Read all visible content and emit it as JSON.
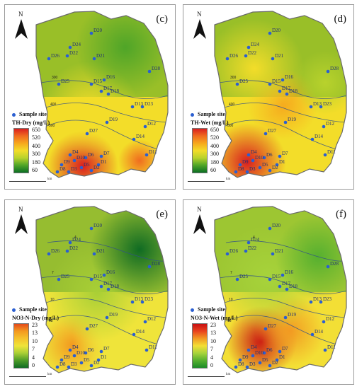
{
  "panels": [
    {
      "letter": "(c)",
      "north": "N",
      "sample_label": "Sample site",
      "legend_title": "TH-Dry (mg/L)",
      "ticks": [
        "650",
        "520",
        "400",
        "300",
        "180",
        "60"
      ],
      "gradient": [
        "#d91f1f",
        "#f06c1f",
        "#f6a81d",
        "#f3dd29",
        "#b8d22c",
        "#4fa528",
        "#0b6f24"
      ],
      "contours": [
        "500",
        "400",
        "300"
      ],
      "sites": [
        "D20",
        "D24",
        "D26",
        "D22",
        "D21",
        "D28",
        "D25",
        "D15",
        "D16",
        "D17",
        "D18",
        "D13",
        "D23",
        "D19",
        "D12",
        "D27",
        "D14",
        "D11",
        "D4",
        "D6",
        "D7",
        "D9",
        "D5",
        "D1",
        "D10",
        "D3",
        "D8",
        "D2"
      ]
    },
    {
      "letter": "(d)",
      "north": "N",
      "sample_label": "Sample site",
      "legend_title": "TH-Wet (mg/L)",
      "ticks": [
        "650",
        "520",
        "400",
        "300",
        "180",
        "60"
      ],
      "gradient": [
        "#d91f1f",
        "#f06c1f",
        "#f6a81d",
        "#f3dd29",
        "#b8d22c",
        "#4fa528",
        "#0b6f24"
      ],
      "contours": [
        "500",
        "400",
        "300"
      ],
      "sites": [
        "D20",
        "D24",
        "D26",
        "D22",
        "D21",
        "D28",
        "D25",
        "D15",
        "D16",
        "D17",
        "D18",
        "D13",
        "D23",
        "D19",
        "D12",
        "D27",
        "D14",
        "D11",
        "D4",
        "D6",
        "D7",
        "D9",
        "D5",
        "D1",
        "D10",
        "D3",
        "D8",
        "D2"
      ]
    },
    {
      "letter": "(e)",
      "north": "N",
      "sample_label": "Sample site",
      "legend_title": "NO3-N-Dry (mg/L)",
      "ticks": [
        "23",
        "13",
        "10",
        "7",
        "4",
        "0"
      ],
      "gradient": [
        "#e44a1b",
        "#f39a1f",
        "#f5c22b",
        "#efe43a",
        "#a8cf36",
        "#4c9c28",
        "#0f6b23"
      ],
      "contours": [
        "13",
        "10",
        "7",
        "4"
      ],
      "sites": [
        "D20",
        "D24",
        "D26",
        "D22",
        "D21",
        "D28",
        "D25",
        "D15",
        "D16",
        "D17",
        "D18",
        "D13",
        "D23",
        "D19",
        "D12",
        "D27",
        "D14",
        "D11",
        "D4",
        "D6",
        "D7",
        "D9",
        "D5",
        "D1",
        "D10",
        "D3",
        "D8",
        "D2"
      ]
    },
    {
      "letter": "(f)",
      "north": "N",
      "sample_label": "Sample site",
      "legend_title": "NO3-N-Wet (mg/L)",
      "ticks": [
        "23",
        "13",
        "10",
        "7",
        "4",
        "0"
      ],
      "gradient": [
        "#c80f12",
        "#e9431e",
        "#f29a22",
        "#f3df35",
        "#a7d33b",
        "#56b02f",
        "#1b8b28"
      ],
      "contours": [
        "13",
        "10",
        "7",
        "4"
      ],
      "sites": [
        "D20",
        "D24",
        "D26",
        "D22",
        "D21",
        "D28",
        "D25",
        "D15",
        "D16",
        "D17",
        "D18",
        "D13",
        "D23",
        "D19",
        "D12",
        "D27",
        "D14",
        "D11",
        "D4",
        "D6",
        "D7",
        "D9",
        "D5",
        "D1",
        "D10",
        "D3",
        "D8",
        "D2"
      ]
    }
  ],
  "scale_unit": "km"
}
